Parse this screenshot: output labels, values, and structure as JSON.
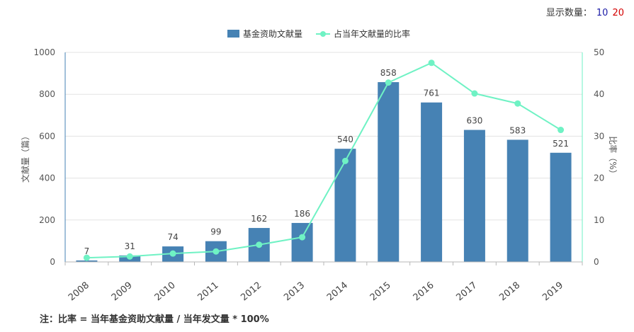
{
  "display_count": {
    "label": "显示数量：",
    "options": [
      "10",
      "20"
    ]
  },
  "footnote": "注：比率 = 当年基金资助文献量 / 当年发文量 * 100%",
  "chart_data": {
    "type": "bar",
    "categories": [
      "2008",
      "2009",
      "2010",
      "2011",
      "2012",
      "2013",
      "2014",
      "2015",
      "2016",
      "2017",
      "2018",
      "2019"
    ],
    "series": [
      {
        "name": "基金资助文献量",
        "type": "bar",
        "axis": "left",
        "color": "#4682b4",
        "values": [
          7,
          31,
          74,
          99,
          162,
          186,
          540,
          858,
          761,
          630,
          583,
          521
        ]
      },
      {
        "name": "占当年文献量的比率",
        "type": "line",
        "axis": "right",
        "color": "#6ff2c4",
        "values": [
          1.0,
          1.3,
          2.0,
          2.5,
          4.1,
          5.9,
          24.1,
          42.8,
          47.5,
          40.2,
          37.8,
          31.5
        ]
      }
    ],
    "ylabel": "文献量（篇）",
    "y2label": "比率（%）",
    "ylim": [
      0,
      1000
    ],
    "y2lim": [
      0,
      50
    ],
    "yticks": [
      "0",
      "200",
      "400",
      "600",
      "800",
      "1000"
    ],
    "y2ticks": [
      "0",
      "10",
      "20",
      "30",
      "40",
      "50"
    ],
    "grid": true,
    "legend": "top-center"
  }
}
